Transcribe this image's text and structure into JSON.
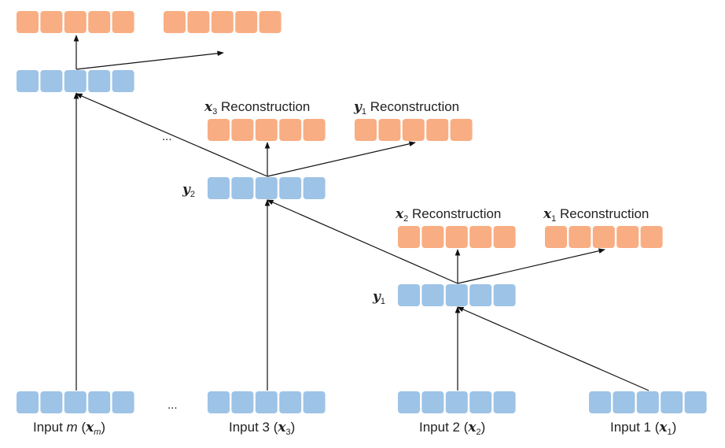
{
  "colors": {
    "encoder": "#9dc3e6",
    "reconstruction": "#f9ad82",
    "arrow": "#111111"
  },
  "labels": {
    "input_m": {
      "prefix": "Input",
      "var": "m",
      "open": " (",
      "sym": "x",
      "sub": "m",
      "close": ")"
    },
    "input_3": {
      "prefix": "Input 3",
      "open": " (",
      "sym": "x",
      "sub": "3",
      "close": ")"
    },
    "input_2": {
      "prefix": "Input 2",
      "open": " (",
      "sym": "x",
      "sub": "2",
      "close": ")"
    },
    "input_1": {
      "prefix": "Input 1",
      "open": " (",
      "sym": "x",
      "sub": "1",
      "close": ")"
    },
    "y2": {
      "sym": "y",
      "sub": "2"
    },
    "y1": {
      "sym": "y",
      "sub": "1"
    },
    "rec_x3": {
      "sym": "x",
      "sub": "3",
      "text": " Reconstruction"
    },
    "rec_y1": {
      "sym": "y",
      "sub": "1",
      "text": " Reconstruction"
    },
    "rec_x2": {
      "sym": "x",
      "sub": "2",
      "text": " Reconstruction"
    },
    "rec_x1": {
      "sym": "x",
      "sub": "1",
      "text": " Reconstruction"
    },
    "ellipsis_top": "...",
    "ellipsis_bottom": "..."
  },
  "cells_per_vector": 5
}
